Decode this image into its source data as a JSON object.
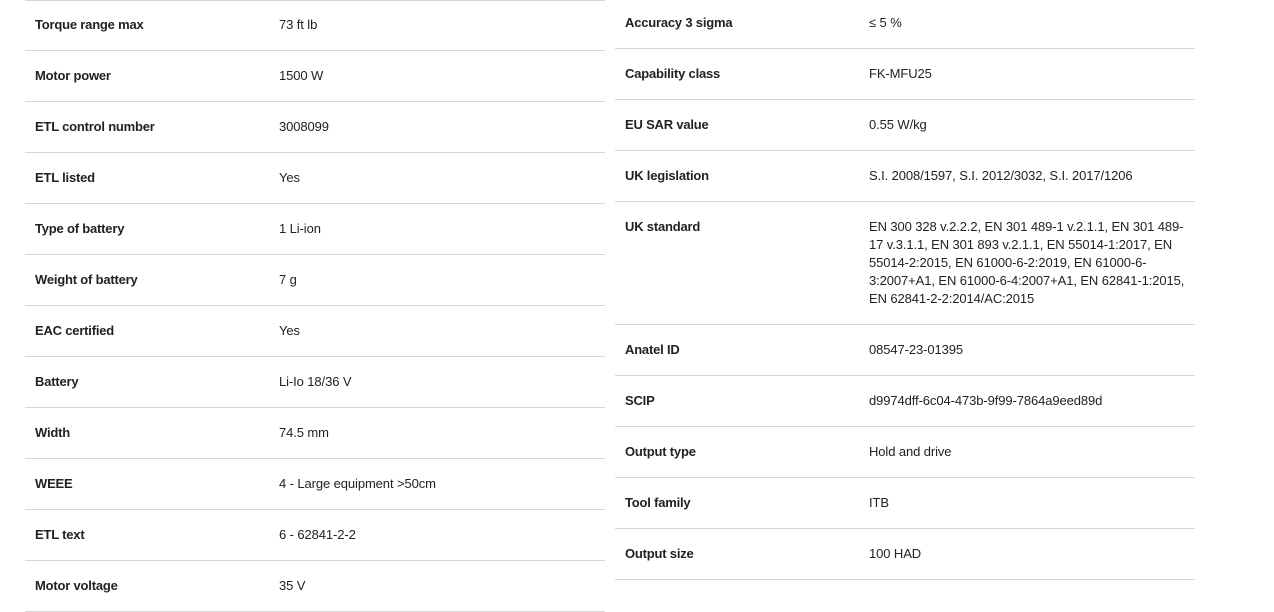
{
  "left_specs": [
    {
      "label": "Torque range max",
      "value": "73 ft lb"
    },
    {
      "label": "Motor power",
      "value": "1500 W"
    },
    {
      "label": "ETL control number",
      "value": "3008099"
    },
    {
      "label": "ETL listed",
      "value": "Yes"
    },
    {
      "label": "Type of battery",
      "value": "1 Li-ion"
    },
    {
      "label": "Weight of battery",
      "value": "7 g"
    },
    {
      "label": "EAC certified",
      "value": "Yes"
    },
    {
      "label": "Battery",
      "value": "Li-Io 18/36 V"
    },
    {
      "label": "Width",
      "value": "74.5 mm"
    },
    {
      "label": "WEEE",
      "value": "4 - Large equipment >50cm"
    },
    {
      "label": "ETL text",
      "value": "6 - 62841-2-2"
    },
    {
      "label": "Motor voltage",
      "value": "35 V"
    }
  ],
  "right_specs": [
    {
      "label": "Accuracy 3 sigma",
      "value": "≤ 5 %"
    },
    {
      "label": "Capability class",
      "value": "FK-MFU25"
    },
    {
      "label": "EU SAR value",
      "value": "0.55 W/kg"
    },
    {
      "label": "UK legislation",
      "value": "S.I. 2008/1597, S.I. 2012/3032, S.I. 2017/1206"
    },
    {
      "label": "UK standard",
      "value": "EN 300 328 v.2.2.2, EN 301 489-1 v.2.1.1, EN 301 489-17 v.3.1.1, EN 301 893 v.2.1.1, EN 55014-1:2017, EN 55014-2:2015, EN 61000-6-2:2019, EN 61000-6-3:2007+A1, EN 61000-6-4:2007+A1, EN 62841-1:2015, EN 62841-2-2:2014/AC:2015"
    },
    {
      "label": "Anatel ID",
      "value": "08547-23-01395"
    },
    {
      "label": "SCIP",
      "value": "d9974dff-6c04-473b-9f99-7864a9eed89d"
    },
    {
      "label": "Output type",
      "value": "Hold and drive"
    },
    {
      "label": "Tool family",
      "value": "ITB"
    },
    {
      "label": "Output size",
      "value": "100 HAD"
    }
  ]
}
